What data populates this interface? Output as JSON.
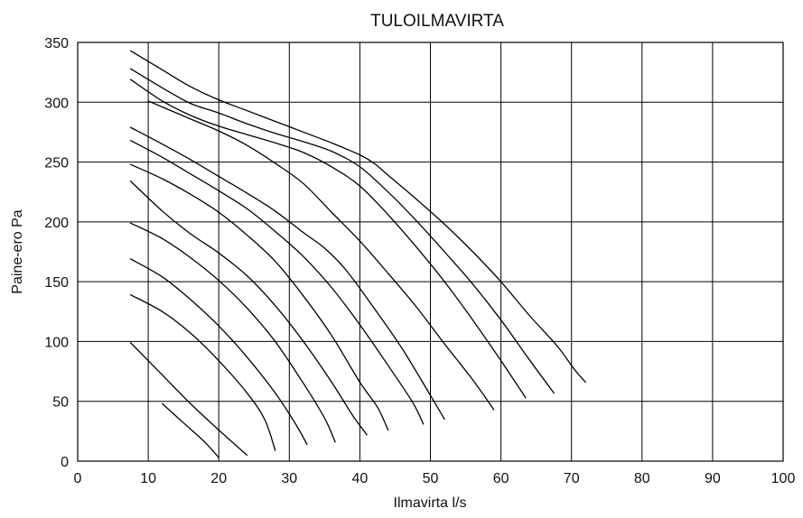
{
  "chart_data": {
    "type": "line",
    "title": "TULOILMAVIRTA",
    "xlabel": "Ilmavirta l/s",
    "ylabel": "Paine-ero Pa",
    "xlim": [
      0,
      100
    ],
    "ylim": [
      0,
      350
    ],
    "xticks": [
      0,
      10,
      20,
      30,
      40,
      50,
      60,
      70,
      80,
      90,
      100
    ],
    "yticks": [
      0,
      50,
      100,
      150,
      200,
      250,
      300,
      350
    ],
    "grid": true,
    "legend": "none",
    "series": [
      {
        "points": [
          [
            12,
            48
          ],
          [
            15,
            32
          ],
          [
            18,
            16
          ],
          [
            20,
            3
          ]
        ]
      },
      {
        "points": [
          [
            7.5,
            99
          ],
          [
            12,
            72
          ],
          [
            16,
            48
          ],
          [
            20,
            26
          ],
          [
            24,
            5
          ]
        ]
      },
      {
        "points": [
          [
            7.5,
            139
          ],
          [
            12,
            125
          ],
          [
            16,
            107
          ],
          [
            20,
            84
          ],
          [
            24,
            57
          ],
          [
            26.5,
            35
          ],
          [
            28,
            9
          ]
        ]
      },
      {
        "points": [
          [
            7.5,
            169
          ],
          [
            12,
            154
          ],
          [
            16,
            135
          ],
          [
            20,
            113
          ],
          [
            24,
            87
          ],
          [
            28,
            57
          ],
          [
            31,
            30
          ],
          [
            32.5,
            14
          ]
        ]
      },
      {
        "points": [
          [
            7.5,
            199
          ],
          [
            12,
            186
          ],
          [
            16,
            170
          ],
          [
            20,
            151
          ],
          [
            24,
            128
          ],
          [
            28,
            100
          ],
          [
            32,
            65
          ],
          [
            35,
            36
          ],
          [
            36.5,
            16
          ]
        ]
      },
      {
        "points": [
          [
            7.5,
            234
          ],
          [
            12,
            209
          ],
          [
            16,
            190
          ],
          [
            20,
            174
          ],
          [
            24,
            155
          ],
          [
            28,
            130
          ],
          [
            32,
            100
          ],
          [
            36,
            66
          ],
          [
            39,
            38
          ],
          [
            41,
            22
          ]
        ]
      },
      {
        "points": [
          [
            7.5,
            248
          ],
          [
            12,
            236
          ],
          [
            16,
            223
          ],
          [
            20,
            208
          ],
          [
            24,
            189
          ],
          [
            28,
            167
          ],
          [
            32,
            138
          ],
          [
            36,
            105
          ],
          [
            40,
            66
          ],
          [
            42.5,
            45
          ],
          [
            44,
            26
          ]
        ]
      },
      {
        "points": [
          [
            7.5,
            268
          ],
          [
            12,
            254
          ],
          [
            16,
            240
          ],
          [
            20,
            226
          ],
          [
            24,
            211
          ],
          [
            28,
            192
          ],
          [
            32,
            171
          ],
          [
            36,
            145
          ],
          [
            40,
            114
          ],
          [
            44,
            80
          ],
          [
            47.5,
            49
          ],
          [
            49,
            31
          ]
        ]
      },
      {
        "points": [
          [
            7.5,
            279
          ],
          [
            12,
            265
          ],
          [
            16,
            252
          ],
          [
            20,
            238
          ],
          [
            24,
            224
          ],
          [
            28,
            209
          ],
          [
            32,
            191
          ],
          [
            35,
            178
          ],
          [
            38,
            160
          ],
          [
            42,
            128
          ],
          [
            46,
            94
          ],
          [
            50,
            55
          ],
          [
            52,
            35
          ]
        ]
      },
      {
        "points": [
          [
            10,
            301
          ],
          [
            16,
            286
          ],
          [
            20,
            276
          ],
          [
            24,
            264
          ],
          [
            28,
            249
          ],
          [
            32,
            232
          ],
          [
            36,
            208
          ],
          [
            40,
            184
          ],
          [
            44,
            157
          ],
          [
            48,
            129
          ],
          [
            52,
            98
          ],
          [
            56,
            68
          ],
          [
            59,
            43
          ]
        ]
      },
      {
        "points": [
          [
            7.5,
            319
          ],
          [
            12,
            301
          ],
          [
            16,
            289
          ],
          [
            20,
            280
          ],
          [
            24,
            273
          ],
          [
            28,
            266
          ],
          [
            32,
            258
          ],
          [
            36,
            246
          ],
          [
            40,
            230
          ],
          [
            44,
            206
          ],
          [
            48,
            179
          ],
          [
            52,
            150
          ],
          [
            56,
            118
          ],
          [
            60,
            84
          ],
          [
            63.5,
            53
          ]
        ]
      },
      {
        "points": [
          [
            7.5,
            328
          ],
          [
            12,
            312
          ],
          [
            16,
            299
          ],
          [
            20,
            291
          ],
          [
            24,
            282
          ],
          [
            28,
            274
          ],
          [
            32,
            267
          ],
          [
            36,
            259
          ],
          [
            40,
            246
          ],
          [
            44,
            225
          ],
          [
            48,
            201
          ],
          [
            52,
            175
          ],
          [
            56,
            148
          ],
          [
            60,
            118
          ],
          [
            64,
            85
          ],
          [
            67.5,
            57
          ]
        ]
      },
      {
        "points": [
          [
            7.5,
            343
          ],
          [
            12,
            327
          ],
          [
            16,
            313
          ],
          [
            20,
            302
          ],
          [
            24,
            293
          ],
          [
            28,
            284
          ],
          [
            32,
            275
          ],
          [
            36,
            266
          ],
          [
            40,
            256
          ],
          [
            42,
            249
          ],
          [
            44,
            239
          ],
          [
            48,
            219
          ],
          [
            52,
            198
          ],
          [
            56,
            175
          ],
          [
            60,
            150
          ],
          [
            64,
            122
          ],
          [
            68,
            96
          ],
          [
            70.5,
            76
          ],
          [
            72,
            66
          ]
        ]
      }
    ]
  }
}
